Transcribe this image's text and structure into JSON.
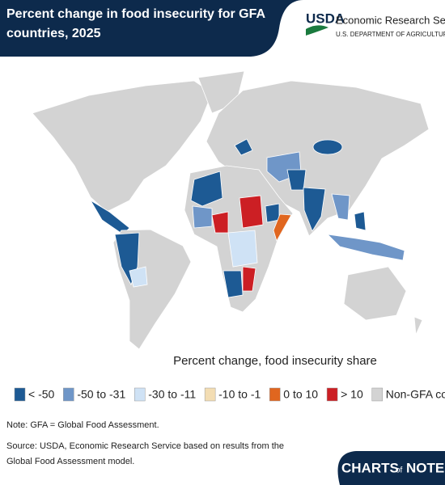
{
  "header": {
    "title": "Percent change in food insecurity for GFA countries, 2025",
    "logo": "USDA",
    "org": "Economic Research Service",
    "dept": "U.S. DEPARTMENT OF AGRICULTURE"
  },
  "legend": {
    "title": "Percent change, food insecurity share",
    "items": [
      {
        "label": "< -50",
        "color": "#1d5a94"
      },
      {
        "label": "-50 to -31",
        "color": "#6f96c8"
      },
      {
        "label": "-30 to -11",
        "color": "#cfe2f5"
      },
      {
        "label": "-10 to -1",
        "color": "#f3ddb3"
      },
      {
        "label": "0 to 10",
        "color": "#e0661f"
      },
      {
        "label": "> 10",
        "color": "#cc1f24"
      },
      {
        "label": "Non-GFA country",
        "color": "#d3d3d3"
      }
    ]
  },
  "note": "Note: GFA = Global Food Assessment.",
  "source": [
    "Source: USDA, Economic Research Service based on results from the",
    "Global Food Assessment model."
  ],
  "footer": {
    "brand": "CHARTS",
    "of": "of",
    "note": "NOTE"
  }
}
